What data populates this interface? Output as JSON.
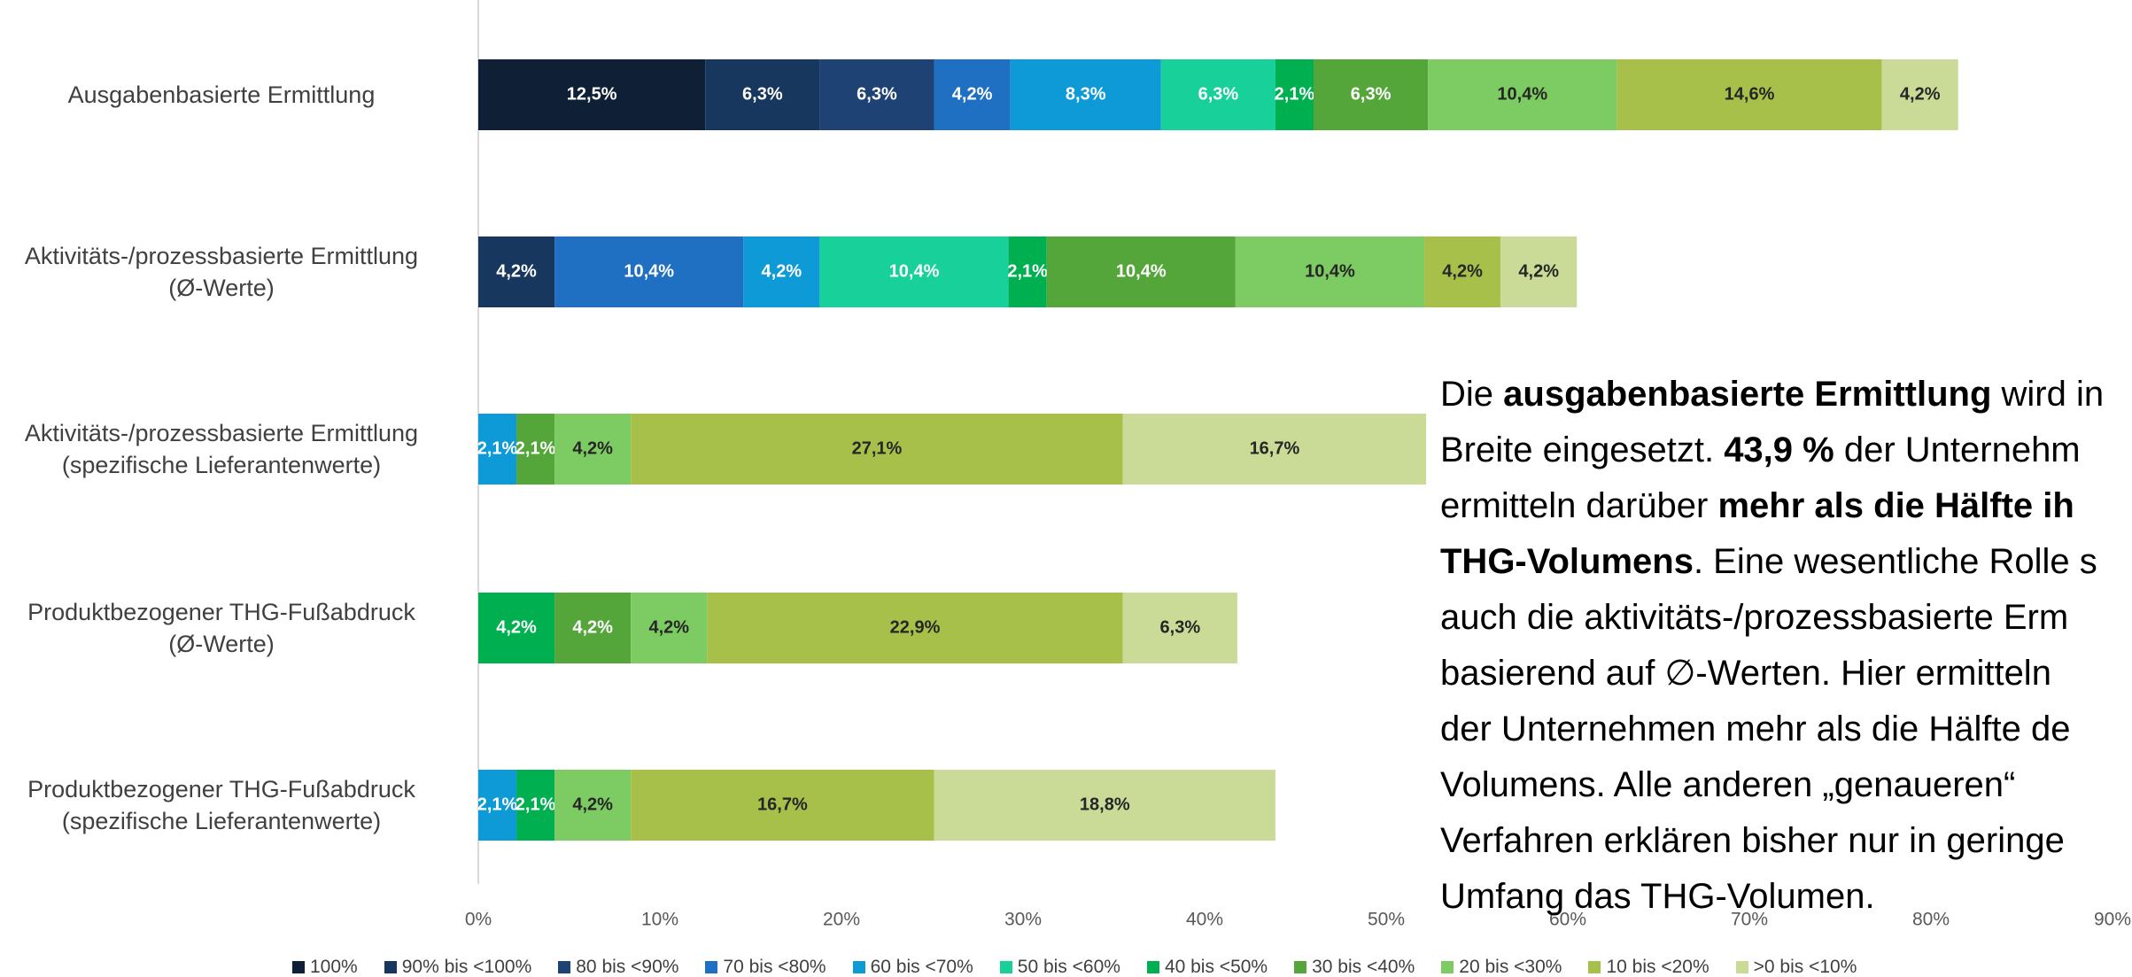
{
  "chart_data": {
    "type": "stacked-bar-horizontal",
    "categories": [
      "Ausgabenbasierte Ermittlung",
      "Aktivitäts-/prozessbasierte Ermittlung\n(Ø-Werte)",
      "Aktivitäts-/prozessbasierte Ermittlung\n(spezifische Lieferantenwerte)",
      "Produktbezogener THG-Fußabdruck\n(Ø-Werte)",
      "Produktbezogener THG-Fußabdruck\n(spezifische Lieferantenwerte)"
    ],
    "series": [
      {
        "name": "100%",
        "color": "#0f2036",
        "values": [
          12.5,
          null,
          null,
          null,
          null
        ],
        "value_labels": [
          "12,5%",
          null,
          null,
          null,
          null
        ]
      },
      {
        "name": "90% bis <100%",
        "color": "#17375e",
        "values": [
          6.3,
          4.2,
          null,
          null,
          null
        ],
        "value_labels": [
          "6,3%",
          "4,2%",
          null,
          null,
          null
        ]
      },
      {
        "name": "80 bis <90%",
        "color": "#1e4273",
        "values": [
          6.3,
          null,
          null,
          null,
          null
        ],
        "value_labels": [
          "6,3%",
          null,
          null,
          null,
          null
        ]
      },
      {
        "name": "70 bis <80%",
        "color": "#1f6fc3",
        "values": [
          4.2,
          10.4,
          null,
          null,
          null
        ],
        "value_labels": [
          "4,2%",
          "10,4%",
          null,
          null,
          null
        ]
      },
      {
        "name": "60 bis <70%",
        "color": "#0e9ad7",
        "values": [
          8.3,
          4.2,
          2.1,
          null,
          2.1
        ],
        "value_labels": [
          "8,3%",
          "4,2%",
          "2,1%",
          null,
          "2,1%"
        ]
      },
      {
        "name": "50 bis <60%",
        "color": "#17d09a",
        "values": [
          6.3,
          10.4,
          null,
          null,
          null
        ],
        "value_labels": [
          "6,3%",
          "10,4%",
          null,
          null,
          null
        ]
      },
      {
        "name": "40 bis <50%",
        "color": "#00b050",
        "values": [
          2.1,
          2.1,
          null,
          4.2,
          2.1
        ],
        "value_labels": [
          "2,1%",
          "2,1%",
          null,
          "4,2%",
          "2,1%"
        ]
      },
      {
        "name": "30 bis <40%",
        "color": "#55a63a",
        "values": [
          6.3,
          10.4,
          2.1,
          4.2,
          null
        ],
        "value_labels": [
          "6,3%",
          "10,4%",
          "2,1%",
          "4,2%",
          null
        ]
      },
      {
        "name": "20 bis <30%",
        "color": "#7dcb63",
        "values": [
          10.4,
          10.4,
          4.2,
          4.2,
          4.2
        ],
        "value_labels": [
          "10,4%",
          "10,4%",
          "4,2%",
          "4,2%",
          "4,2%"
        ]
      },
      {
        "name": "10 bis <20%",
        "color": "#a6c04a",
        "values": [
          14.6,
          4.2,
          27.1,
          22.9,
          16.7
        ],
        "value_labels": [
          "14,6%",
          "4,2%",
          "27,1%",
          "22,9%",
          "16,7%"
        ]
      },
      {
        "name": ">0 bis <10%",
        "color": "#c9db96",
        "values": [
          4.2,
          4.2,
          16.7,
          6.3,
          18.8
        ],
        "value_labels": [
          "4,2%",
          "4,2%",
          "16,7%",
          "6,3%",
          "18,8%"
        ]
      }
    ],
    "xlim": [
      0,
      90
    ],
    "xticks": [
      {
        "value": 0,
        "label": "0%"
      },
      {
        "value": 10,
        "label": "10%"
      },
      {
        "value": 20,
        "label": "20%"
      },
      {
        "value": 30,
        "label": "30%"
      },
      {
        "value": 40,
        "label": "40%"
      },
      {
        "value": 50,
        "label": "50%"
      },
      {
        "value": 60,
        "label": "60%"
      },
      {
        "value": 70,
        "label": "70%"
      },
      {
        "value": 80,
        "label": "80%"
      },
      {
        "value": 90,
        "label": "90%"
      }
    ],
    "grid": false,
    "annotation": [
      [
        {
          "text": "Die ",
          "bold": false
        },
        {
          "text": "ausgabenbasierte Ermittlung",
          "bold": true
        },
        {
          "text": " wird in",
          "bold": false
        }
      ],
      [
        {
          "text": "Breite eingesetzt. ",
          "bold": false
        },
        {
          "text": "43,9 %",
          "bold": true
        },
        {
          "text": " der Unternehm",
          "bold": false
        }
      ],
      [
        {
          "text": "ermitteln darüber ",
          "bold": false
        },
        {
          "text": "mehr als die Hälfte ih",
          "bold": true
        }
      ],
      [
        {
          "text": "THG-Volumens",
          "bold": true
        },
        {
          "text": ". Eine wesentliche Rolle s",
          "bold": false
        }
      ],
      [
        {
          "text": "auch die aktivitäts-/prozessbasierte Erm",
          "bold": false
        }
      ],
      [
        {
          "text": "basierend auf ∅-Werten. Hier ermitteln",
          "bold": false
        }
      ],
      [
        {
          "text": "der Unternehmen mehr als die Hälfte de",
          "bold": false
        }
      ],
      [
        {
          "text": "Volumens. Alle anderen „genaueren“",
          "bold": false
        }
      ],
      [
        {
          "text": "Verfahren erklären bisher nur in geringe",
          "bold": false
        }
      ],
      [
        {
          "text": "Umfang das THG-Volumen.",
          "bold": false
        }
      ]
    ]
  }
}
